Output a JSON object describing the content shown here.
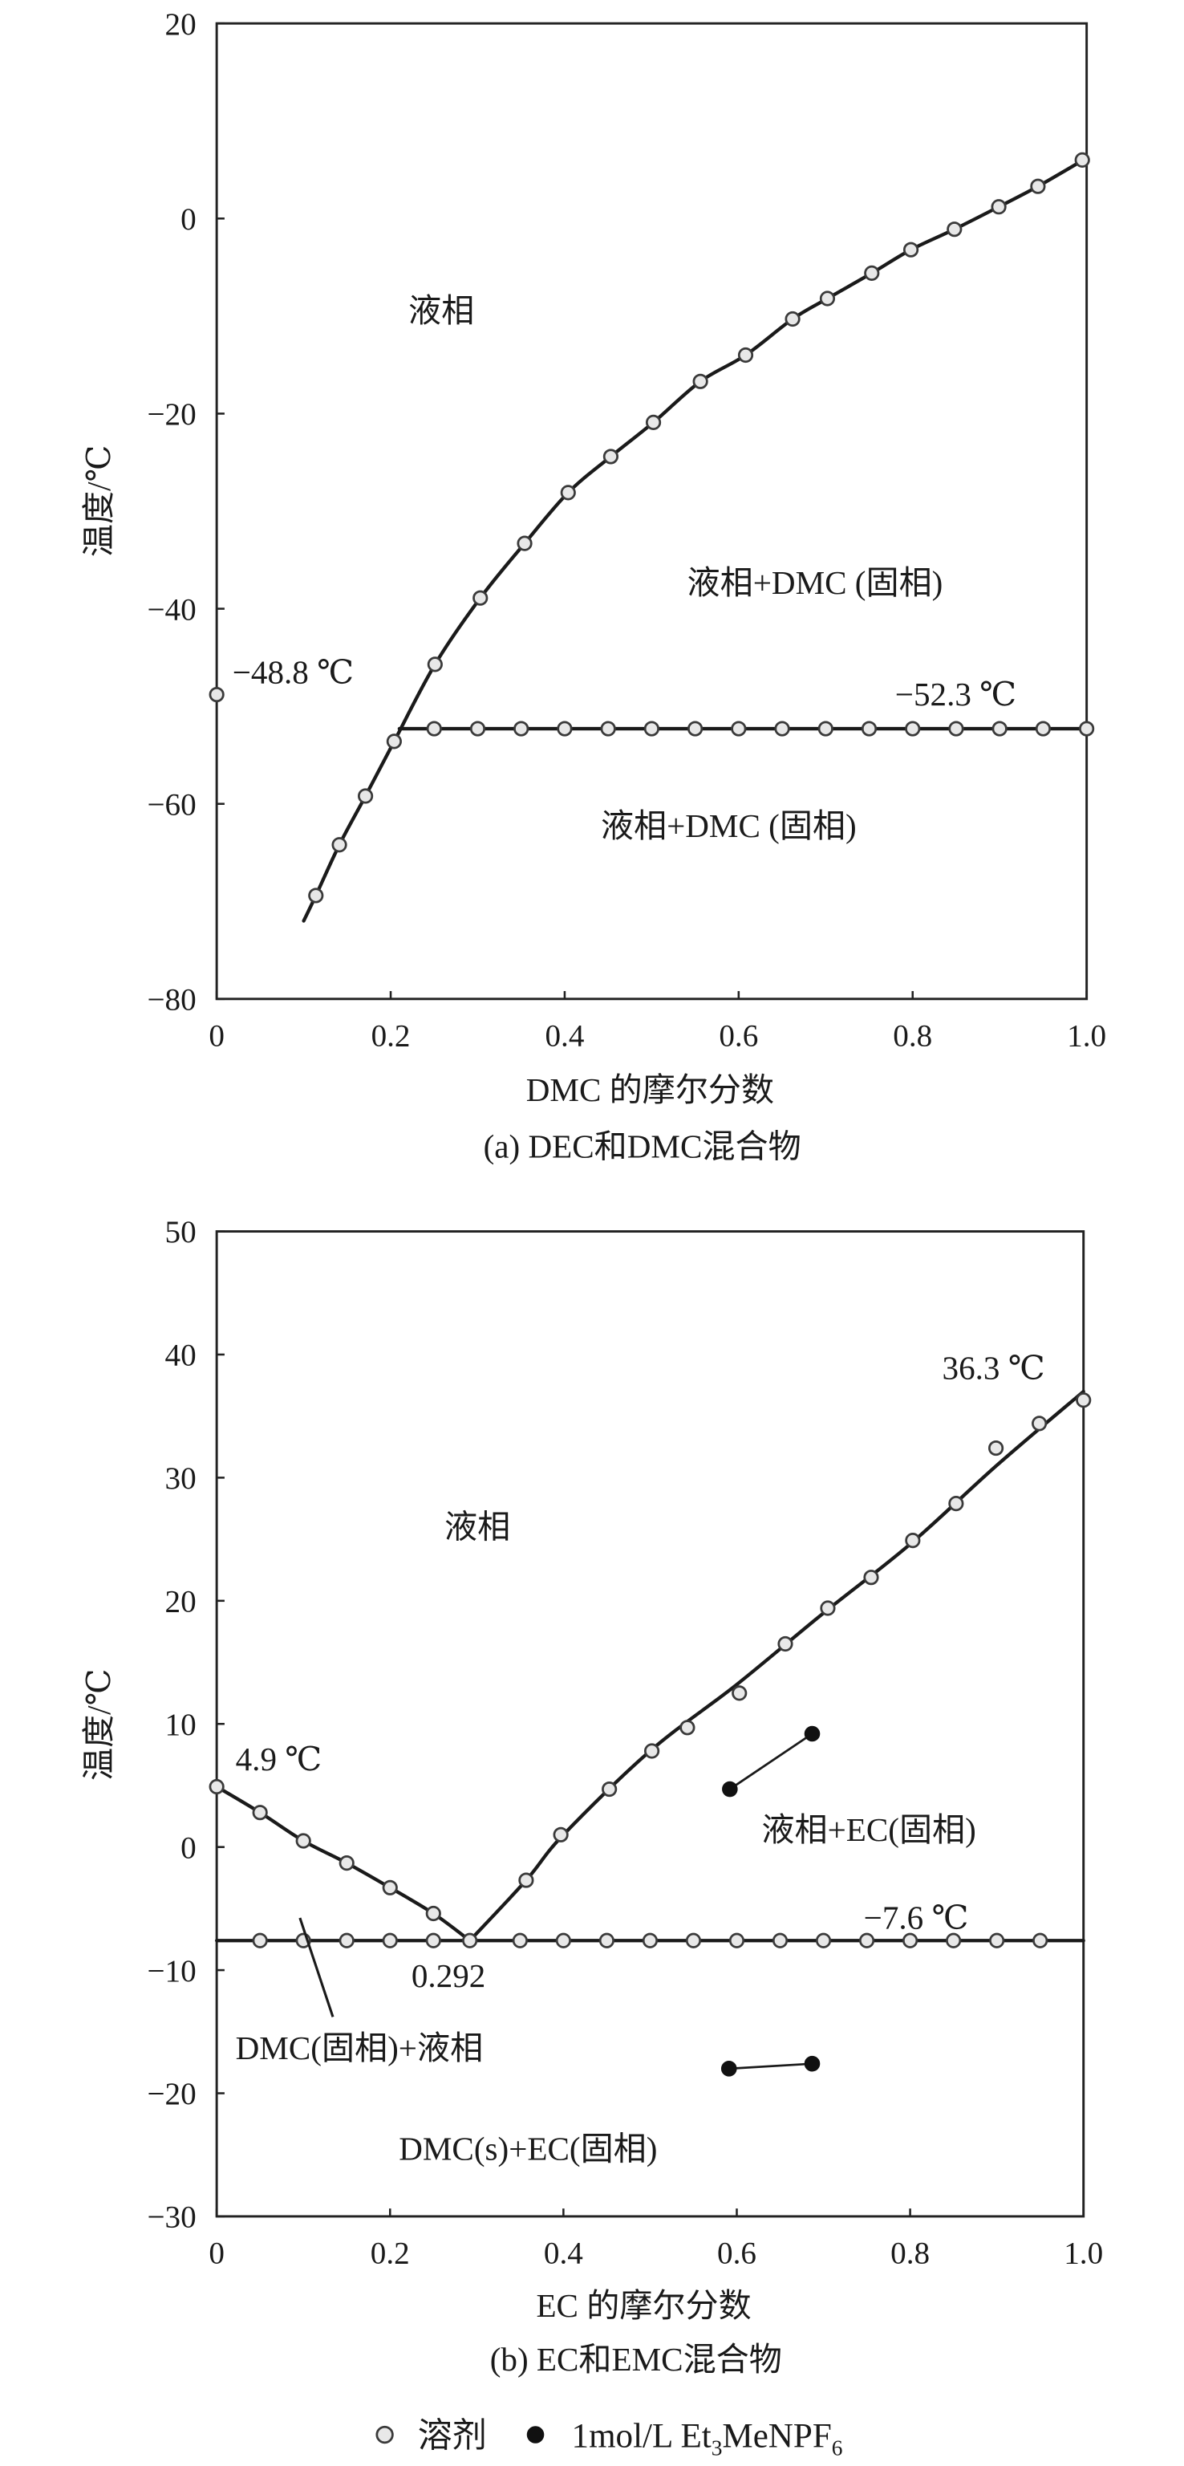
{
  "chart_data": [
    {
      "type": "scatter",
      "caption": "(a) DEC和DMC混合物",
      "xlabel": "DMC 的摩尔分数",
      "ylabel": "温度/℃",
      "xlim": [
        0,
        1.0
      ],
      "ylim": [
        -80,
        20
      ],
      "xticks": [
        0,
        0.2,
        0.4,
        0.6,
        0.8,
        1.0
      ],
      "xtick_labels": [
        "0",
        "0.2",
        "0.4",
        "0.6",
        "0.8",
        "1.0"
      ],
      "yticks": [
        20,
        0,
        -20,
        -40,
        -60,
        -80
      ],
      "ytick_labels": [
        "20",
        "0",
        "−20",
        "−40",
        "−60",
        "−80"
      ],
      "grid": false,
      "series": [
        {
          "legend_item": 0,
          "marker": "open-circle",
          "points": [
            [
              0,
              -48.8
            ],
            [
              0.114,
              -69.4
            ],
            [
              0.141,
              -64.2
            ],
            [
              0.171,
              -59.2
            ],
            [
              0.204,
              -53.6
            ],
            [
              0.251,
              -45.7
            ],
            [
              0.303,
              -38.9
            ],
            [
              0.354,
              -33.3
            ],
            [
              0.404,
              -28.1
            ],
            [
              0.453,
              -24.4
            ],
            [
              0.502,
              -20.9
            ],
            [
              0.556,
              -16.7
            ],
            [
              0.608,
              -14.0
            ],
            [
              0.662,
              -10.3
            ],
            [
              0.702,
              -8.2
            ],
            [
              0.753,
              -5.6
            ],
            [
              0.798,
              -3.2
            ],
            [
              0.848,
              -1.1
            ],
            [
              0.899,
              1.2
            ],
            [
              0.944,
              3.3
            ],
            [
              0.995,
              6.0
            ],
            [
              0.25,
              -52.3
            ],
            [
              0.3,
              -52.3
            ],
            [
              0.35,
              -52.3
            ],
            [
              0.4,
              -52.3
            ],
            [
              0.45,
              -52.3
            ],
            [
              0.5,
              -52.3
            ],
            [
              0.55,
              -52.3
            ],
            [
              0.6,
              -52.3
            ],
            [
              0.65,
              -52.3
            ],
            [
              0.7,
              -52.3
            ],
            [
              0.75,
              -52.3
            ],
            [
              0.8,
              -52.3
            ],
            [
              0.85,
              -52.3
            ],
            [
              0.9,
              -52.3
            ],
            [
              0.95,
              -52.3
            ],
            [
              1.0,
              -52.3
            ]
          ]
        }
      ],
      "lines": [
        {
          "smooth": true,
          "points": [
            [
              0.1,
              -72.0
            ],
            [
              0.114,
              -69.4
            ],
            [
              0.141,
              -64.2
            ],
            [
              0.171,
              -59.2
            ],
            [
              0.204,
              -53.6
            ],
            [
              0.251,
              -45.7
            ],
            [
              0.303,
              -38.9
            ],
            [
              0.354,
              -33.3
            ],
            [
              0.404,
              -28.1
            ],
            [
              0.453,
              -24.4
            ],
            [
              0.502,
              -20.9
            ],
            [
              0.556,
              -16.7
            ],
            [
              0.608,
              -14.0
            ],
            [
              0.662,
              -10.3
            ],
            [
              0.702,
              -8.2
            ],
            [
              0.753,
              -5.6
            ],
            [
              0.798,
              -3.2
            ],
            [
              0.848,
              -1.1
            ],
            [
              0.899,
              1.2
            ],
            [
              0.944,
              3.3
            ],
            [
              1.0,
              6.2
            ]
          ]
        },
        {
          "smooth": false,
          "points": [
            [
              0.21,
              -52.3
            ],
            [
              1.0,
              -52.3
            ]
          ]
        }
      ],
      "annotations": [
        "液相",
        "液相+DMC (固相)",
        "−48.8 ℃",
        "−52.3 ℃",
        "液相+DMC (固相)"
      ]
    },
    {
      "type": "scatter",
      "caption": "(b) EC和EMC混合物",
      "xlabel": "EC 的摩尔分数",
      "ylabel": "温度/℃",
      "xlim": [
        0,
        1.0
      ],
      "ylim": [
        -30,
        50
      ],
      "xticks": [
        0,
        0.2,
        0.4,
        0.6,
        0.8,
        1.0
      ],
      "xtick_labels": [
        "0",
        "0.2",
        "0.4",
        "0.6",
        "0.8",
        "1.0"
      ],
      "yticks": [
        50,
        40,
        30,
        20,
        10,
        0,
        -10,
        -20,
        -30
      ],
      "ytick_labels": [
        "50",
        "40",
        "30",
        "20",
        "10",
        "0",
        "−10",
        "−20",
        "−30"
      ],
      "grid": false,
      "series": [
        {
          "legend_item": 0,
          "marker": "open-circle",
          "points": [
            [
              0,
              4.9
            ],
            [
              0.05,
              2.8
            ],
            [
              0.1,
              0.5
            ],
            [
              0.15,
              -1.3
            ],
            [
              0.2,
              -3.3
            ],
            [
              0.25,
              -5.4
            ],
            [
              0.292,
              -7.6
            ],
            [
              0.357,
              -2.7
            ],
            [
              0.397,
              1.0
            ],
            [
              0.453,
              4.7
            ],
            [
              0.502,
              7.8
            ],
            [
              0.543,
              9.7
            ],
            [
              0.603,
              12.5
            ],
            [
              0.656,
              16.5
            ],
            [
              0.705,
              19.4
            ],
            [
              0.755,
              21.9
            ],
            [
              0.803,
              24.9
            ],
            [
              0.853,
              27.9
            ],
            [
              0.899,
              32.4
            ],
            [
              0.949,
              34.4
            ],
            [
              1.0,
              36.3
            ],
            [
              0.05,
              -7.6
            ],
            [
              0.1,
              -7.6
            ],
            [
              0.15,
              -7.6
            ],
            [
              0.2,
              -7.6
            ],
            [
              0.25,
              -7.6
            ],
            [
              0.35,
              -7.6
            ],
            [
              0.4,
              -7.6
            ],
            [
              0.45,
              -7.6
            ],
            [
              0.5,
              -7.6
            ],
            [
              0.55,
              -7.6
            ],
            [
              0.6,
              -7.6
            ],
            [
              0.65,
              -7.6
            ],
            [
              0.7,
              -7.6
            ],
            [
              0.75,
              -7.6
            ],
            [
              0.8,
              -7.6
            ],
            [
              0.85,
              -7.6
            ],
            [
              0.9,
              -7.6
            ],
            [
              0.95,
              -7.6
            ]
          ]
        },
        {
          "legend_item": 1,
          "marker": "filled-circle",
          "segments": [
            [
              [
                0.592,
                4.7
              ],
              [
                0.687,
                9.2
              ]
            ],
            [
              [
                0.591,
                -18.0
              ],
              [
                0.687,
                -17.6
              ]
            ]
          ]
        }
      ],
      "lines": [
        {
          "smooth": true,
          "points": [
            [
              0,
              4.9
            ],
            [
              0.05,
              2.8
            ],
            [
              0.1,
              0.5
            ],
            [
              0.15,
              -1.3
            ],
            [
              0.2,
              -3.3
            ],
            [
              0.25,
              -5.4
            ],
            [
              0.292,
              -7.6
            ]
          ]
        },
        {
          "smooth": true,
          "points": [
            [
              0.292,
              -7.6
            ],
            [
              0.357,
              -2.7
            ],
            [
              0.4,
              1.0
            ],
            [
              0.5,
              7.8
            ],
            [
              0.6,
              13.2
            ],
            [
              0.7,
              19.0
            ],
            [
              0.8,
              24.6
            ],
            [
              0.9,
              31.0
            ],
            [
              1.0,
              37.0
            ]
          ]
        },
        {
          "smooth": false,
          "points": [
            [
              0,
              -7.6
            ],
            [
              1.0,
              -7.6
            ]
          ]
        }
      ],
      "annotations": [
        "36.3 ℃",
        "液相",
        "4.9 ℃",
        "液相+EC(固相)",
        "−7.6 ℃",
        "0.292",
        "DMC(固相)+液相",
        "DMC(s)+EC(固相)"
      ]
    }
  ],
  "legend": {
    "placement": "bottom",
    "items": [
      {
        "label": "溶剂",
        "marker": "open-circle"
      },
      {
        "label_parts": [
          "1mol/L Et",
          "3",
          "MeNPF",
          "6"
        ],
        "marker": "filled-circle"
      }
    ]
  },
  "colors": {
    "line": "#1a1a1a",
    "marker_edge": "#3a3a3a",
    "marker_open_fill": "#e8e8e8",
    "marker_filled": "#111111"
  }
}
